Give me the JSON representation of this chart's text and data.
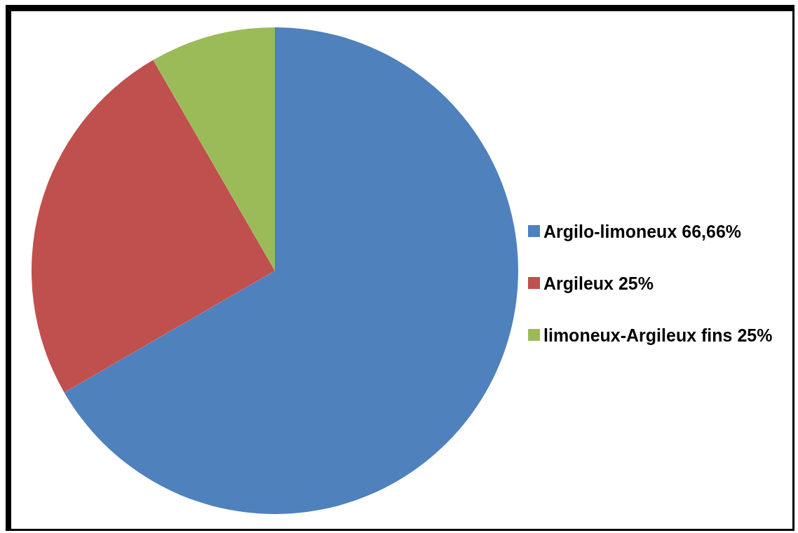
{
  "chart_data": {
    "type": "pie",
    "categories": [
      "Argilo-limoneux 66,66%",
      "Argileux 25%",
      "limoneux-Argileux fins 25%"
    ],
    "values": [
      66.66,
      25,
      8.34
    ],
    "colors": [
      "#4f81bd",
      "#c0504d",
      "#9bbb59"
    ],
    "legend": "right"
  }
}
